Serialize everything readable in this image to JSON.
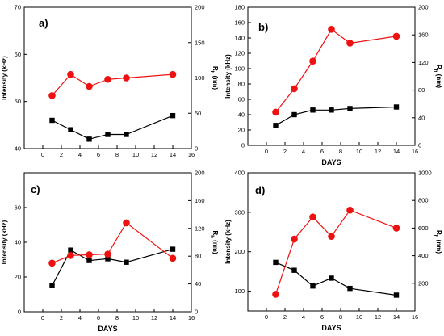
{
  "colors": {
    "intensity": "#000000",
    "rh": "#ee1111",
    "axis": "#000000",
    "background": "#ffffff"
  },
  "chart_data": [
    {
      "type": "line",
      "panel_label": "a)",
      "xlabel": "",
      "ylabel_left": "Intensity (kHz)",
      "ylabel_right": "R_h (nm)",
      "xlim": [
        -2,
        16
      ],
      "xticks": [
        0,
        2,
        4,
        6,
        8,
        10,
        12,
        14,
        16
      ],
      "ylim_left": [
        40,
        70
      ],
      "yticks_left": [
        40,
        50,
        60,
        70
      ],
      "ylim_right": [
        0,
        200
      ],
      "yticks_right": [
        0,
        50,
        100,
        150,
        200
      ],
      "series": [
        {
          "axis": "left",
          "marker": "square",
          "x": [
            1,
            3,
            5,
            7,
            9,
            14
          ],
          "values": [
            46,
            44,
            42,
            43,
            43,
            47
          ]
        },
        {
          "axis": "right",
          "marker": "circle",
          "x": [
            1,
            3,
            5,
            7,
            9,
            14
          ],
          "values": [
            75,
            105,
            88,
            98,
            100,
            105
          ]
        }
      ]
    },
    {
      "type": "line",
      "panel_label": "b)",
      "xlabel": "DAYS",
      "ylabel_left": "Intensity (kHz)",
      "ylabel_right": "R_h (nm)",
      "xlim": [
        -2,
        16
      ],
      "xticks": [
        0,
        2,
        4,
        6,
        8,
        10,
        12,
        14,
        16
      ],
      "ylim_left": [
        0,
        180
      ],
      "yticks_left": [
        0,
        20,
        40,
        60,
        80,
        100,
        120,
        140,
        160,
        180
      ],
      "ylim_right": [
        0,
        200
      ],
      "yticks_right": [
        0,
        40,
        80,
        120,
        160,
        200
      ],
      "series": [
        {
          "axis": "left",
          "marker": "square",
          "x": [
            1,
            3,
            5,
            7,
            9,
            14
          ],
          "values": [
            26,
            40,
            46,
            46,
            48,
            50
          ]
        },
        {
          "axis": "right",
          "marker": "circle",
          "x": [
            1,
            3,
            5,
            7,
            9,
            14
          ],
          "values": [
            48,
            82,
            122,
            168,
            148,
            158
          ]
        }
      ]
    },
    {
      "type": "line",
      "panel_label": "c)",
      "xlabel": "DAYS",
      "ylabel_left": "Intensity (kHz)",
      "ylabel_right": "R_h (nm)",
      "xlim": [
        -2,
        16
      ],
      "xticks": [
        0,
        2,
        4,
        6,
        8,
        10,
        12,
        14,
        16
      ],
      "ylim_left": [
        0,
        80
      ],
      "yticks_left": [
        0,
        20,
        40,
        60
      ],
      "ylim_right": [
        0,
        200
      ],
      "yticks_right": [
        0,
        40,
        80,
        120,
        160,
        200
      ],
      "series": [
        {
          "axis": "left",
          "marker": "square",
          "x": [
            1,
            3,
            5,
            7,
            9,
            14
          ],
          "values": [
            15,
            35.5,
            29.5,
            30.5,
            28.5,
            36
          ]
        },
        {
          "axis": "right",
          "marker": "circle",
          "x": [
            1,
            3,
            5,
            7,
            9,
            14
          ],
          "values": [
            70,
            81,
            82,
            83,
            128,
            77
          ]
        }
      ]
    },
    {
      "type": "line",
      "panel_label": "d)",
      "xlabel": "DAYS",
      "ylabel_left": "Intensity (kHz)",
      "ylabel_right": "R_h (nm)",
      "xlim": [
        -2,
        16
      ],
      "xticks": [
        0,
        2,
        4,
        6,
        8,
        10,
        12,
        14,
        16
      ],
      "ylim_left": [
        50,
        400
      ],
      "yticks_left": [
        100,
        200,
        300,
        400
      ],
      "ylim_right": [
        0,
        1000
      ],
      "yticks_right": [
        200,
        400,
        600,
        800,
        1000
      ],
      "series": [
        {
          "axis": "left",
          "marker": "square",
          "x": [
            1,
            3,
            5,
            7,
            9,
            14
          ],
          "values": [
            173,
            153,
            113,
            133,
            107,
            90
          ]
        },
        {
          "axis": "right",
          "marker": "circle",
          "x": [
            1,
            3,
            5,
            7,
            9,
            14
          ],
          "values": [
            120,
            520,
            680,
            540,
            730,
            600
          ]
        }
      ]
    }
  ]
}
